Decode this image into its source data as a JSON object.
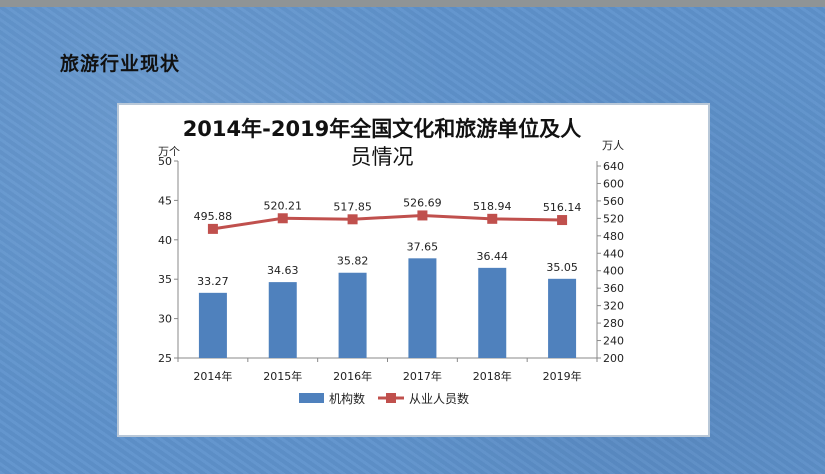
{
  "slide": {
    "heading": "旅游行业现状"
  },
  "chart_data": {
    "type": "bar+line",
    "title_line1": "2014年-2019年全国文化和旅游单位及人",
    "title_line2": "员情况",
    "categories": [
      "2014年",
      "2015年",
      "2016年",
      "2017年",
      "2018年",
      "2019年"
    ],
    "series": [
      {
        "name": "机构数",
        "type": "bar",
        "axis": "left",
        "color": "#4f81bd",
        "values": [
          33.27,
          34.63,
          35.82,
          37.65,
          36.44,
          35.05
        ],
        "labels": [
          "33.27",
          "34.63",
          "35.82",
          "37.65",
          "36.44",
          "35.05"
        ]
      },
      {
        "name": "从业人员数",
        "type": "line",
        "axis": "right",
        "color": "#c0504d",
        "values": [
          495.88,
          520.21,
          517.85,
          526.69,
          518.94,
          516.14
        ],
        "labels": [
          "495.88",
          "520.21",
          "517.85",
          "526.69",
          "518.94",
          "516.14"
        ]
      }
    ],
    "left_axis": {
      "unit": "万个",
      "ylim": [
        25,
        50
      ],
      "ticks": [
        "25",
        "30",
        "35",
        "40",
        "45",
        "50"
      ]
    },
    "right_axis": {
      "unit": "万人",
      "ylim": [
        200,
        640
      ],
      "ticks": [
        "200",
        "240",
        "280",
        "320",
        "360",
        "400",
        "440",
        "480",
        "520",
        "560",
        "600",
        "640"
      ]
    },
    "legend": "bottom",
    "grid": false
  }
}
